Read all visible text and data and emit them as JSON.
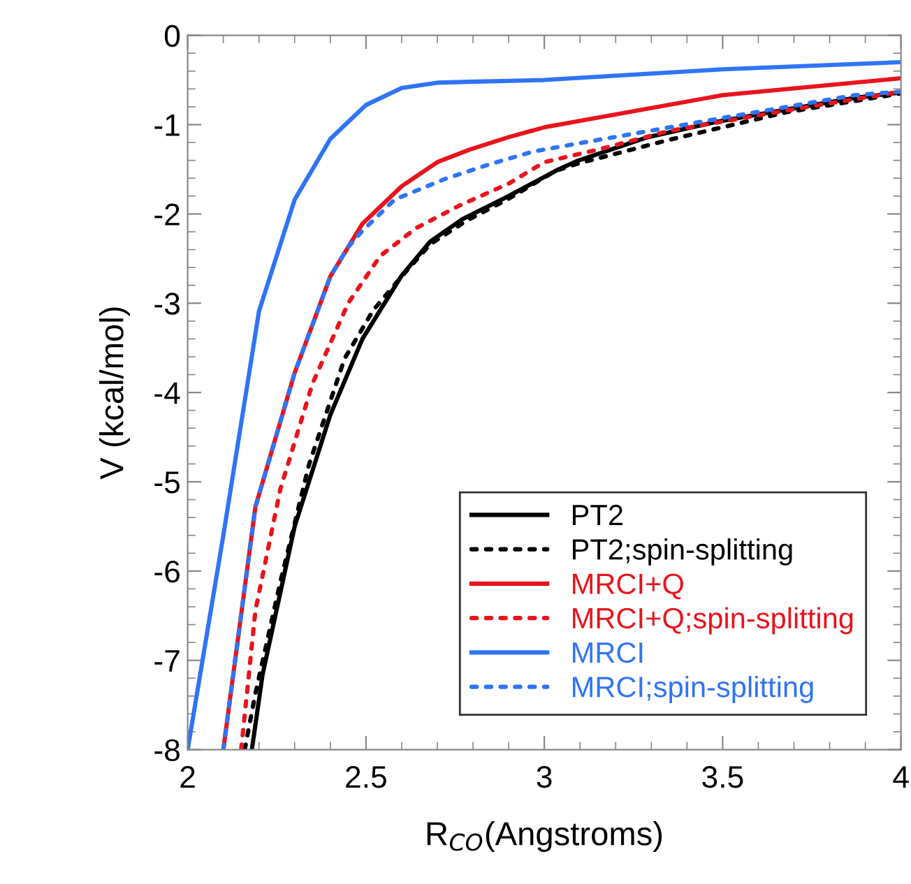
{
  "chart_data": {
    "type": "line",
    "xlabel": "R$_{CO}$(Angstroms)",
    "ylabel": "V (kcal/mol)",
    "xlim": [
      2,
      4
    ],
    "ylim": [
      -8,
      0
    ],
    "xticks": [
      2,
      2.5,
      3,
      3.5,
      4
    ],
    "yticks": [
      -8,
      -7,
      -6,
      -5,
      -4,
      -3,
      -2,
      -1,
      0
    ],
    "grid": false,
    "legend": "bottom right",
    "marker": "none",
    "series": [
      {
        "name": "PT2",
        "color": "#000000",
        "line_style": "solid",
        "x": [
          2.18,
          2.21,
          2.3,
          2.4,
          2.49,
          2.6,
          2.68,
          2.77,
          2.9,
          3.04,
          3.09,
          3.29,
          3.48,
          3.68,
          3.87,
          4.0
        ],
        "values": [
          -8.0,
          -7.16,
          -5.5,
          -4.25,
          -3.4,
          -2.69,
          -2.31,
          -2.06,
          -1.8,
          -1.5,
          -1.41,
          -1.14,
          -0.97,
          -0.83,
          -0.7,
          -0.64
        ]
      },
      {
        "name": "PT2;spin-splitting",
        "color": "#000000",
        "line_style": "dotted",
        "x": [
          2.16,
          2.19,
          2.26,
          2.34,
          2.44,
          2.52,
          2.6,
          2.68,
          2.78,
          2.9,
          3.03,
          3.09,
          3.35,
          3.68,
          4.0
        ],
        "values": [
          -8.0,
          -7.37,
          -6.12,
          -4.81,
          -3.62,
          -3.08,
          -2.7,
          -2.34,
          -2.08,
          -1.83,
          -1.52,
          -1.44,
          -1.17,
          -0.86,
          -0.65
        ]
      },
      {
        "name": "MRCI+Q",
        "color": "#e8141c",
        "line_style": "solid",
        "x": [
          2.1,
          2.19,
          2.3,
          2.4,
          2.49,
          2.6,
          2.7,
          2.79,
          2.9,
          3.0,
          3.5,
          4.0
        ],
        "values": [
          -8.0,
          -5.28,
          -3.78,
          -2.7,
          -2.11,
          -1.69,
          -1.42,
          -1.28,
          -1.14,
          -1.03,
          -0.67,
          -0.48
        ]
      },
      {
        "name": "MRCI+Q;spin-splitting",
        "color": "#e8141c",
        "line_style": "dotted",
        "x": [
          2.15,
          2.19,
          2.26,
          2.35,
          2.45,
          2.54,
          2.64,
          2.76,
          2.9,
          3.0,
          3.16,
          3.35,
          3.68,
          4.0
        ],
        "values": [
          -8.0,
          -6.44,
          -5.08,
          -3.9,
          -3.0,
          -2.47,
          -2.16,
          -1.91,
          -1.66,
          -1.42,
          -1.27,
          -1.07,
          -0.84,
          -0.63
        ]
      },
      {
        "name": "MRCI",
        "color": "#2f74f5",
        "line_style": "solid",
        "x": [
          2.0,
          2.1,
          2.2,
          2.3,
          2.4,
          2.5,
          2.6,
          2.7,
          2.79,
          3.0,
          3.5,
          4.0
        ],
        "values": [
          -8.0,
          -5.6,
          -3.09,
          -1.84,
          -1.16,
          -0.78,
          -0.59,
          -0.53,
          -0.52,
          -0.5,
          -0.38,
          -0.3
        ]
      },
      {
        "name": "MRCI;spin-splitting",
        "color": "#2f74f5",
        "line_style": "dotted",
        "x": [
          2.1,
          2.19,
          2.3,
          2.4,
          2.45,
          2.49,
          2.58,
          2.72,
          2.85,
          2.97,
          3.11,
          3.21,
          3.55,
          3.87,
          4.0
        ],
        "values": [
          -8.0,
          -5.28,
          -3.78,
          -2.7,
          -2.37,
          -2.19,
          -1.84,
          -1.61,
          -1.44,
          -1.3,
          -1.2,
          -1.13,
          -0.89,
          -0.67,
          -0.63
        ]
      }
    ]
  }
}
